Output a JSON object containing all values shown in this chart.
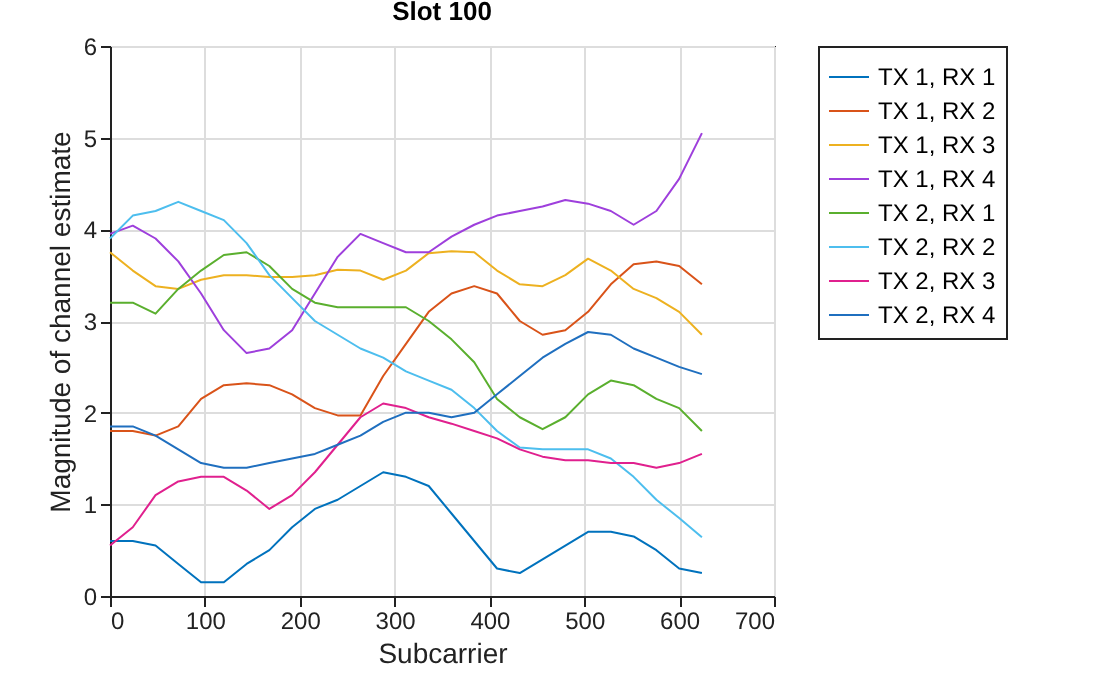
{
  "chart_data": {
    "type": "line",
    "title": "Slot 100",
    "xlabel": "Subcarrier",
    "ylabel": "Magnitude of channel estimate",
    "x": [
      0,
      24,
      48,
      72,
      96,
      120,
      144,
      168,
      192,
      216,
      240,
      264,
      288,
      312,
      336,
      360,
      384,
      408,
      432,
      456,
      480,
      504,
      528,
      552,
      576,
      600,
      624
    ],
    "series": [
      {
        "name": "TX 1, RX 1",
        "color": "#0072bd",
        "values": [
          0.6,
          0.6,
          0.55,
          0.35,
          0.15,
          0.15,
          0.35,
          0.5,
          0.75,
          0.95,
          1.05,
          1.2,
          1.35,
          1.3,
          1.2,
          0.9,
          0.6,
          0.3,
          0.25,
          0.4,
          0.55,
          0.7,
          0.7,
          0.65,
          0.5,
          0.3,
          0.25
        ]
      },
      {
        "name": "TX 1, RX 2",
        "color": "#d95319",
        "values": [
          1.8,
          1.8,
          1.75,
          1.85,
          2.15,
          2.3,
          2.32,
          2.3,
          2.2,
          2.05,
          1.97,
          1.97,
          2.4,
          2.75,
          3.1,
          3.3,
          3.38,
          3.3,
          3.0,
          2.85,
          2.9,
          3.1,
          3.4,
          3.62,
          3.65,
          3.6,
          3.4
        ]
      },
      {
        "name": "TX 1, RX 3",
        "color": "#edb120",
        "values": [
          3.75,
          3.55,
          3.38,
          3.35,
          3.45,
          3.5,
          3.5,
          3.48,
          3.48,
          3.5,
          3.56,
          3.55,
          3.45,
          3.55,
          3.74,
          3.76,
          3.75,
          3.55,
          3.4,
          3.38,
          3.5,
          3.68,
          3.55,
          3.35,
          3.25,
          3.1,
          2.85
        ]
      },
      {
        "name": "TX 1, RX 4",
        "color": "#9e3fdc",
        "values": [
          3.95,
          4.04,
          3.9,
          3.65,
          3.3,
          2.9,
          2.65,
          2.7,
          2.9,
          3.3,
          3.7,
          3.95,
          3.85,
          3.75,
          3.75,
          3.92,
          4.05,
          4.15,
          4.2,
          4.25,
          4.32,
          4.28,
          4.2,
          4.05,
          4.2,
          4.55,
          5.05
        ]
      },
      {
        "name": "TX 2, RX 1",
        "color": "#5aaf2e",
        "values": [
          3.2,
          3.2,
          3.08,
          3.35,
          3.55,
          3.72,
          3.75,
          3.6,
          3.35,
          3.2,
          3.15,
          3.15,
          3.15,
          3.15,
          3.0,
          2.8,
          2.55,
          2.15,
          1.95,
          1.82,
          1.95,
          2.2,
          2.35,
          2.3,
          2.15,
          2.05,
          1.8
        ]
      },
      {
        "name": "TX 2, RX 2",
        "color": "#4dbeee",
        "values": [
          3.9,
          4.15,
          4.2,
          4.3,
          4.2,
          4.1,
          3.85,
          3.5,
          3.25,
          3.0,
          2.85,
          2.7,
          2.6,
          2.45,
          2.35,
          2.25,
          2.05,
          1.8,
          1.62,
          1.6,
          1.6,
          1.6,
          1.5,
          1.3,
          1.05,
          0.85,
          0.64
        ]
      },
      {
        "name": "TX 2, RX 3",
        "color": "#e0208e",
        "values": [
          0.55,
          0.75,
          1.1,
          1.25,
          1.3,
          1.3,
          1.15,
          0.95,
          1.1,
          1.35,
          1.65,
          1.95,
          2.1,
          2.05,
          1.95,
          1.88,
          1.8,
          1.72,
          1.6,
          1.52,
          1.48,
          1.48,
          1.45,
          1.45,
          1.4,
          1.45,
          1.55
        ]
      },
      {
        "name": "TX 2, RX 4",
        "color": "#1f6fbf",
        "values": [
          1.85,
          1.85,
          1.75,
          1.6,
          1.45,
          1.4,
          1.4,
          1.45,
          1.5,
          1.55,
          1.65,
          1.75,
          1.9,
          2.0,
          2.0,
          1.95,
          2.0,
          2.2,
          2.4,
          2.6,
          2.75,
          2.88,
          2.85,
          2.7,
          2.6,
          2.5,
          2.42
        ]
      }
    ],
    "xlim": [
      0,
      700
    ],
    "xticks": [
      0,
      100,
      200,
      300,
      400,
      500,
      600,
      700
    ],
    "ylim": [
      0,
      6
    ],
    "yticks": [
      0,
      1,
      2,
      3,
      4,
      5,
      6
    ],
    "grid": true,
    "legend": "right",
    "marker": "none",
    "line_style": "solid"
  }
}
